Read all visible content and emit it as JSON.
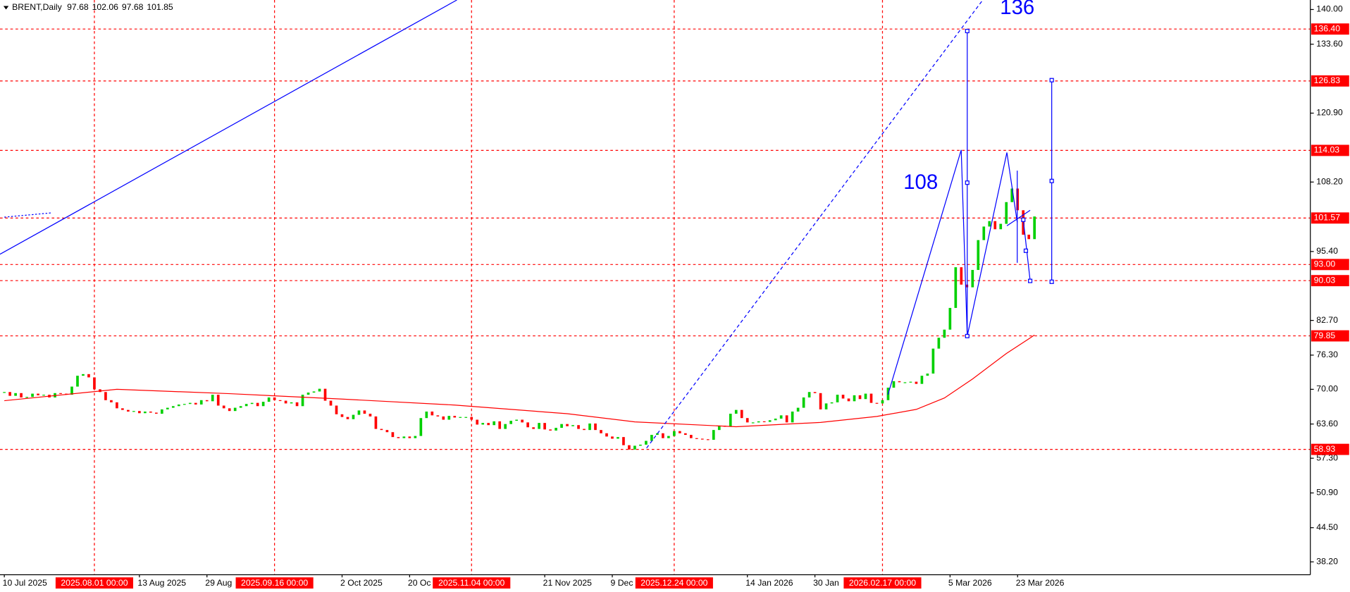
{
  "chart_data": {
    "type": "candlestick",
    "symbol": "BRENT,Daily",
    "ohlc": [
      97.68,
      102.06,
      97.68,
      101.85
    ],
    "series": [
      {
        "up_color": "#00d000",
        "down_color": "#ff0000",
        "values": [
          69.5,
          68.8,
          69.3,
          68.5,
          68.6,
          69.2,
          68.9,
          69.0,
          68.5,
          69.3,
          69.2,
          69.0,
          70.5,
          72.5,
          72.8,
          72.2,
          70.0,
          69.5,
          68.0,
          67.6,
          66.5,
          66.2,
          65.9,
          66.0,
          65.6,
          65.9,
          65.7,
          65.5,
          66.3,
          66.6,
          66.9,
          67.2,
          67.3,
          67.5,
          67.2,
          68.0,
          67.8,
          69.0,
          67.0,
          66.5,
          66.0,
          66.6,
          66.9,
          67.3,
          67.5,
          66.9,
          67.7,
          68.5,
          68.0,
          67.9,
          67.4,
          67.6,
          66.9,
          69.0,
          69.4,
          69.6,
          70.1,
          67.9,
          67.0,
          65.4,
          64.9,
          64.5,
          65.3,
          66.1,
          65.5,
          65.0,
          62.7,
          62.5,
          62.1,
          61.2,
          61.0,
          61.3,
          61.0,
          61.4,
          64.7,
          65.9,
          65.2,
          65.0,
          64.4,
          65.1,
          64.8,
          64.9,
          64.9,
          64.4,
          63.5,
          63.8,
          63.4,
          64.1,
          62.7,
          63.6,
          64.2,
          64.4,
          63.9,
          63.0,
          62.7,
          63.8,
          62.6,
          62.4,
          62.9,
          63.6,
          63.2,
          63.4,
          62.7,
          62.5,
          63.7,
          62.5,
          61.9,
          61.3,
          60.9,
          61.2,
          59.7,
          58.9,
          59.6,
          59.8,
          60.5,
          61.6,
          61.9,
          61.0,
          61.4,
          62.3,
          61.9,
          61.6,
          61.0,
          60.9,
          60.8,
          60.7,
          62.5,
          63.3,
          63.1,
          65.5,
          66.2,
          64.7,
          63.9,
          63.9,
          64.1,
          64.0,
          64.3,
          64.6,
          65.2,
          63.9,
          65.9,
          66.6,
          68.5,
          69.5,
          69.3,
          66.3,
          67.4,
          67.6,
          69.0,
          68.3,
          67.8,
          68.9,
          68.2,
          69.2,
          67.5,
          67.4,
          68.0,
          70.3,
          71.5,
          71.3,
          71.3,
          71.4,
          71.0,
          72.5,
          72.9,
          77.5,
          79.5,
          81.0,
          85.0,
          92.5,
          89.3,
          88.8,
          92.0,
          97.5,
          100.0,
          101.0,
          99.5,
          100.5,
          104.5,
          107.0,
          103.0,
          98.5,
          97.68,
          101.85
        ]
      }
    ],
    "ma": {
      "color": "#ff0000",
      "x": [
        0,
        20,
        40,
        60,
        80,
        100,
        112,
        130,
        145,
        155,
        162,
        167,
        172,
        178,
        182,
        183
      ],
      "values": [
        67.9,
        70.0,
        69.2,
        68.2,
        67.1,
        65.5,
        64.0,
        63.1,
        63.9,
        65.0,
        66.3,
        68.4,
        71.9,
        76.6,
        79.3,
        80.0
      ]
    },
    "ylim": [
      35.82,
      141.75
    ],
    "yticks": [
      {
        "value": 140,
        "label": "140.00"
      },
      {
        "value": 133.6,
        "label": "133.60"
      },
      {
        "value": 120.9,
        "label": "120.90"
      },
      {
        "value": 108.2,
        "label": "108.20"
      },
      {
        "value": 95.4,
        "label": "95.40"
      },
      {
        "value": 82.7,
        "label": "82.70"
      },
      {
        "value": 76.3,
        "label": "76.30"
      },
      {
        "value": 70,
        "label": "70.00"
      },
      {
        "value": 63.6,
        "label": "63.60"
      },
      {
        "value": 57.3,
        "label": "57.30"
      },
      {
        "value": 50.9,
        "label": "50.90"
      },
      {
        "value": 44.5,
        "label": "44.50"
      },
      {
        "value": 38.2,
        "label": "38.20"
      }
    ],
    "levels": [
      {
        "value": 136.4,
        "label": "136.40"
      },
      {
        "value": 126.83,
        "label": "126.83"
      },
      {
        "value": 114.03,
        "label": "114.03"
      },
      {
        "value": 101.57,
        "label": "101.57"
      },
      {
        "value": 93,
        "label": "93.00"
      },
      {
        "value": 90.03,
        "label": "90.03"
      },
      {
        "value": 79.85,
        "label": "79.85"
      },
      {
        "value": 58.93,
        "label": "58.93"
      }
    ],
    "xticks": [
      {
        "value": 0,
        "label": "10 Jul 2025"
      },
      {
        "value": 24,
        "label": "13 Aug 2025"
      },
      {
        "value": 36,
        "label": "29 Aug"
      },
      {
        "value": 60,
        "label": "2 Oct 2025"
      },
      {
        "value": 72,
        "label": "20 Oc"
      },
      {
        "value": 96,
        "label": "21 Nov 2025"
      },
      {
        "value": 108,
        "label": "9 Dec"
      },
      {
        "value": 132,
        "label": "14 Jan 2026"
      },
      {
        "value": 144,
        "label": "30 Jan"
      },
      {
        "value": 168,
        "label": "5 Mar 2026"
      },
      {
        "value": 180,
        "label": "23 Mar 2026"
      }
    ],
    "xmarkers": [
      {
        "value": 16,
        "label": "2025.08.01 00:00"
      },
      {
        "value": 48,
        "label": "2025.09.16 00:00"
      },
      {
        "value": 83,
        "label": "2025.11.04 00:00"
      },
      {
        "value": 119,
        "label": "2025.12.24 00:00"
      },
      {
        "value": 156,
        "label": "2026.02.17 00:00"
      }
    ],
    "annotations": [
      "108",
      "136"
    ]
  }
}
